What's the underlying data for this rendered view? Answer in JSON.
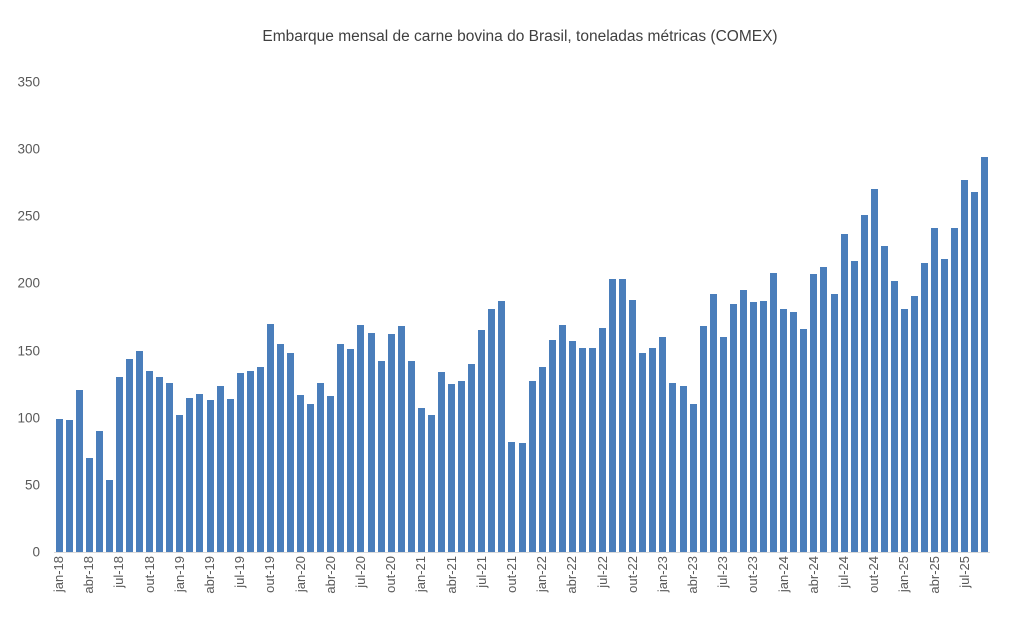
{
  "chart_data": {
    "type": "bar",
    "title": "Embarque mensal de carne bovina do Brasil, toneladas métricas (COMEX)",
    "xlabel": "",
    "ylabel": "",
    "ylim": [
      0,
      350
    ],
    "yticks": [
      0,
      50,
      100,
      150,
      200,
      250,
      300,
      350
    ],
    "grid": false,
    "legend": null,
    "bar_color": "#4a7ebb",
    "x_tick_labels": [
      "jan-18",
      "abr-18",
      "jul-18",
      "out-18",
      "jan-19",
      "abr-19",
      "jul-19",
      "out-19",
      "jan-20",
      "abr-20",
      "jul-20",
      "out-20",
      "jan-21",
      "abr-21",
      "jul-21",
      "out-21",
      "jan-22",
      "abr-22",
      "jul-22",
      "out-22",
      "jan-23",
      "abr-23",
      "jul-23",
      "out-23",
      "jan-24",
      "abr-24",
      "jul-24",
      "out-24",
      "jan-25",
      "abr-25",
      "jul-25"
    ],
    "categories": [
      "jan-18",
      "fev-18",
      "mar-18",
      "abr-18",
      "mai-18",
      "jun-18",
      "jul-18",
      "ago-18",
      "set-18",
      "out-18",
      "nov-18",
      "dez-18",
      "jan-19",
      "fev-19",
      "mar-19",
      "abr-19",
      "mai-19",
      "jun-19",
      "jul-19",
      "ago-19",
      "set-19",
      "out-19",
      "nov-19",
      "dez-19",
      "jan-20",
      "fev-20",
      "mar-20",
      "abr-20",
      "mai-20",
      "jun-20",
      "jul-20",
      "ago-20",
      "set-20",
      "out-20",
      "nov-20",
      "dez-20",
      "jan-21",
      "fev-21",
      "mar-21",
      "abr-21",
      "mai-21",
      "jun-21",
      "jul-21",
      "ago-21",
      "set-21",
      "out-21",
      "nov-21",
      "dez-21",
      "jan-22",
      "fev-22",
      "mar-22",
      "abr-22",
      "mai-22",
      "jun-22",
      "jul-22",
      "ago-22",
      "set-22",
      "out-22",
      "nov-22",
      "dez-22",
      "jan-23",
      "fev-23",
      "mar-23",
      "abr-23",
      "mai-23",
      "jun-23",
      "jul-23",
      "ago-23",
      "set-23",
      "out-23",
      "nov-23",
      "dez-23",
      "jan-24",
      "fev-24",
      "mar-24",
      "abr-24",
      "mai-24",
      "jun-24",
      "jul-24",
      "ago-24",
      "set-24",
      "out-24",
      "nov-24",
      "dez-24",
      "jan-25",
      "fev-25",
      "mar-25",
      "abr-25",
      "mai-25",
      "jun-25",
      "jul-25",
      "ago-25",
      "set-25"
    ],
    "values": [
      99,
      98,
      121,
      70,
      90,
      54,
      130,
      144,
      150,
      135,
      130,
      126,
      102,
      115,
      118,
      113,
      124,
      114,
      133,
      135,
      138,
      170,
      155,
      148,
      117,
      110,
      126,
      116,
      155,
      151,
      169,
      163,
      142,
      162,
      168,
      142,
      107,
      102,
      134,
      125,
      127,
      140,
      165,
      181,
      187,
      82,
      81,
      127,
      138,
      158,
      169,
      157,
      152,
      152,
      167,
      203,
      203,
      188,
      148,
      152,
      160,
      126,
      124,
      110,
      168,
      192,
      160,
      185,
      195,
      186,
      187,
      208,
      181,
      179,
      166,
      207,
      212,
      192,
      237,
      217,
      251,
      270,
      228,
      202,
      181,
      191,
      215,
      241,
      218,
      241,
      277,
      268,
      294
    ]
  }
}
